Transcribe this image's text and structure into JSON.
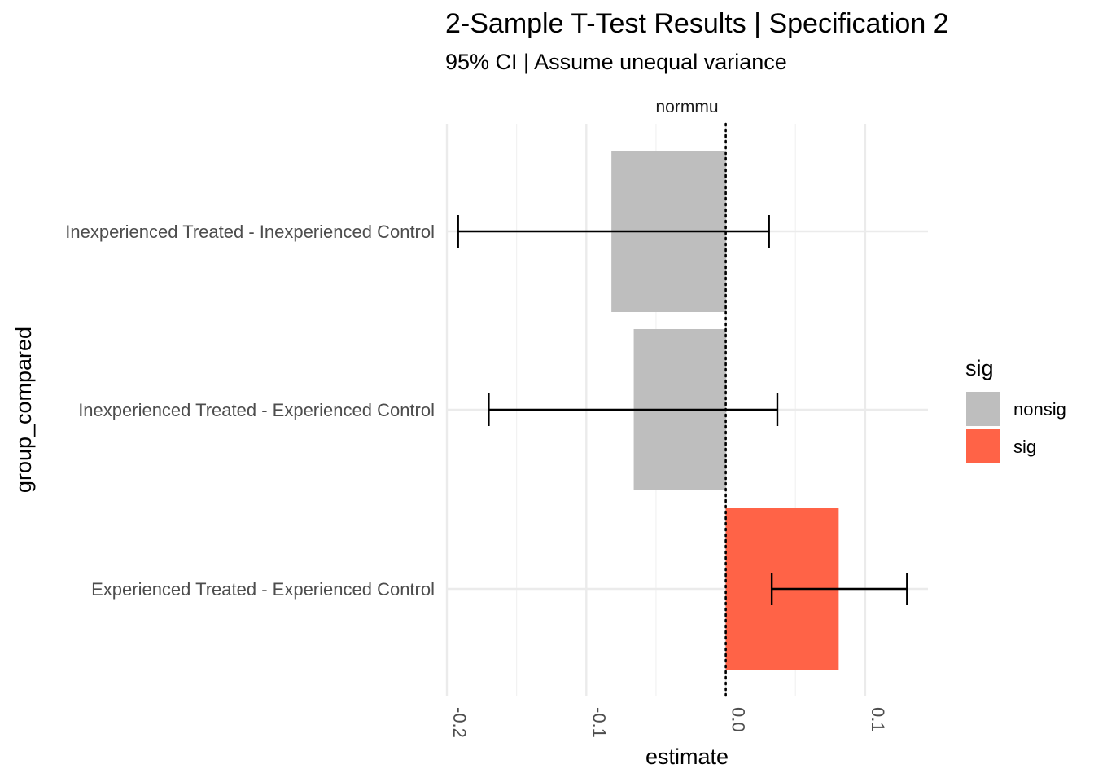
{
  "chart_data": {
    "type": "bar",
    "orientation": "horizontal",
    "title": "2-Sample T-Test Results | Specification 2",
    "subtitle": "95% CI | Assume unequal variance",
    "facet_label": "normmu",
    "xlabel": "estimate",
    "ylabel": "group_compared",
    "xlim": [
      -0.2,
      0.145
    ],
    "x_ticks": [
      -0.2,
      -0.1,
      0.0,
      0.1
    ],
    "x_tick_labels": [
      "-0.2",
      "-0.1",
      "0.0",
      "0.1"
    ],
    "reference_line": 0,
    "grid": true,
    "legend": {
      "title": "sig",
      "position": "right",
      "entries": [
        {
          "label": "nonsig",
          "color": "#bebebe"
        },
        {
          "label": "sig",
          "color": "#ff6347"
        }
      ]
    },
    "categories": [
      "Inexperienced Treated - Inexperienced Control",
      "Inexperienced Treated - Experienced Control",
      "Experienced Treated - Experienced Control"
    ],
    "series": [
      {
        "values": [
          -0.082,
          -0.066,
          0.081
        ],
        "ci_low": [
          -0.192,
          -0.17,
          0.033
        ],
        "ci_high": [
          0.031,
          0.037,
          0.13
        ],
        "sig": [
          "nonsig",
          "nonsig",
          "sig"
        ]
      }
    ]
  }
}
